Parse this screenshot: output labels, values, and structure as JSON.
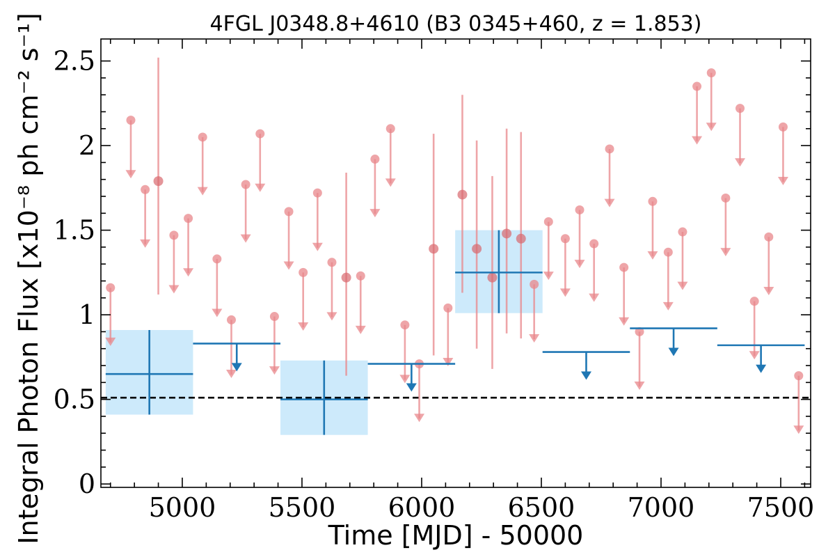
{
  "chart_data": {
    "type": "scatter",
    "title": "4FGL J0348.8+4610 (B3 0345+460, z = 1.853)",
    "xlabel": "Time [MJD] - 50000",
    "ylabel": "Integral Photon Flux [x10⁻⁸ ph cm⁻² s⁻¹]",
    "xlim": [
      4660,
      7625
    ],
    "ylim": [
      -0.02,
      2.63
    ],
    "xticks": [
      5000,
      5500,
      6000,
      6500,
      7000,
      7500
    ],
    "xtick_labels": [
      "5000",
      "5500",
      "6000",
      "6500",
      "7000",
      "7500"
    ],
    "yticks": [
      0,
      0.5,
      1,
      1.5,
      2,
      2.5
    ],
    "ytick_labels": [
      "0",
      "0.5",
      "1",
      "1.5",
      "2",
      "2.5"
    ],
    "reference_line": {
      "y": 0.51,
      "style": "dashed",
      "color": "#000000"
    },
    "colors": {
      "short_bins": "#e8878b",
      "long_bins": "#1f77b4",
      "long_bins_band": "#cdeafb"
    },
    "series": [
      {
        "style": "short-bin-upper-limits",
        "points": [
          {
            "x": 4700,
            "y": 1.16
          },
          {
            "x": 4785,
            "y": 2.15
          },
          {
            "x": 4845,
            "y": 1.74
          },
          {
            "x": 4965,
            "y": 1.47
          },
          {
            "x": 5025,
            "y": 1.57
          },
          {
            "x": 5085,
            "y": 2.05
          },
          {
            "x": 5145,
            "y": 1.33
          },
          {
            "x": 5205,
            "y": 0.97
          },
          {
            "x": 5265,
            "y": 1.77
          },
          {
            "x": 5325,
            "y": 2.07
          },
          {
            "x": 5385,
            "y": 0.99
          },
          {
            "x": 5445,
            "y": 1.61
          },
          {
            "x": 5505,
            "y": 1.25
          },
          {
            "x": 5565,
            "y": 1.72
          },
          {
            "x": 5625,
            "y": 1.31
          },
          {
            "x": 5745,
            "y": 1.23
          },
          {
            "x": 5805,
            "y": 1.92
          },
          {
            "x": 5870,
            "y": 2.1
          },
          {
            "x": 5930,
            "y": 0.94
          },
          {
            "x": 5990,
            "y": 0.71
          },
          {
            "x": 6110,
            "y": 1.04
          },
          {
            "x": 6470,
            "y": 1.18
          },
          {
            "x": 6530,
            "y": 1.55
          },
          {
            "x": 6600,
            "y": 1.45
          },
          {
            "x": 6660,
            "y": 1.62
          },
          {
            "x": 6720,
            "y": 1.42
          },
          {
            "x": 6785,
            "y": 1.98
          },
          {
            "x": 6845,
            "y": 1.28
          },
          {
            "x": 6910,
            "y": 0.9
          },
          {
            "x": 6965,
            "y": 1.67
          },
          {
            "x": 7030,
            "y": 1.37
          },
          {
            "x": 7090,
            "y": 1.49
          },
          {
            "x": 7150,
            "y": 2.35
          },
          {
            "x": 7210,
            "y": 2.43
          },
          {
            "x": 7270,
            "y": 1.69
          },
          {
            "x": 7330,
            "y": 2.22
          },
          {
            "x": 7390,
            "y": 1.08
          },
          {
            "x": 7450,
            "y": 1.46
          },
          {
            "x": 7510,
            "y": 2.11
          },
          {
            "x": 7575,
            "y": 0.64
          }
        ]
      },
      {
        "style": "short-bin-detections",
        "points": [
          {
            "x": 4900,
            "y": 1.79,
            "ylow": 1.12,
            "yhigh": 2.52
          },
          {
            "x": 5685,
            "y": 1.22,
            "ylow": 0.64,
            "yhigh": 1.84
          },
          {
            "x": 6050,
            "y": 1.39,
            "ylow": 0.76,
            "yhigh": 2.07
          },
          {
            "x": 6170,
            "y": 1.71,
            "ylow": 1.13,
            "yhigh": 2.3
          },
          {
            "x": 6230,
            "y": 1.39,
            "ylow": 0.8,
            "yhigh": 2.03
          },
          {
            "x": 6295,
            "y": 1.22,
            "ylow": 0.68,
            "yhigh": 1.82
          },
          {
            "x": 6355,
            "y": 1.48,
            "ylow": 0.89,
            "yhigh": 2.1
          },
          {
            "x": 6415,
            "y": 1.45,
            "ylow": 0.86,
            "yhigh": 2.08
          }
        ]
      },
      {
        "style": "long-bin-detections",
        "points": [
          {
            "x0": 4680,
            "x1": 5045,
            "y": 0.65,
            "ylow": 0.41,
            "yhigh": 0.91
          },
          {
            "x0": 5410,
            "x1": 5775,
            "y": 0.5,
            "ylow": 0.29,
            "yhigh": 0.73
          },
          {
            "x0": 6140,
            "x1": 6505,
            "y": 1.25,
            "ylow": 1.01,
            "yhigh": 1.5
          }
        ]
      },
      {
        "style": "long-bin-upper-limits",
        "points": [
          {
            "x0": 5045,
            "x1": 5410,
            "y": 0.83
          },
          {
            "x0": 5775,
            "x1": 6140,
            "y": 0.71
          },
          {
            "x0": 6505,
            "x1": 6870,
            "y": 0.78
          },
          {
            "x0": 6870,
            "x1": 7235,
            "y": 0.92
          },
          {
            "x0": 7235,
            "x1": 7600,
            "y": 0.82
          }
        ]
      }
    ]
  }
}
